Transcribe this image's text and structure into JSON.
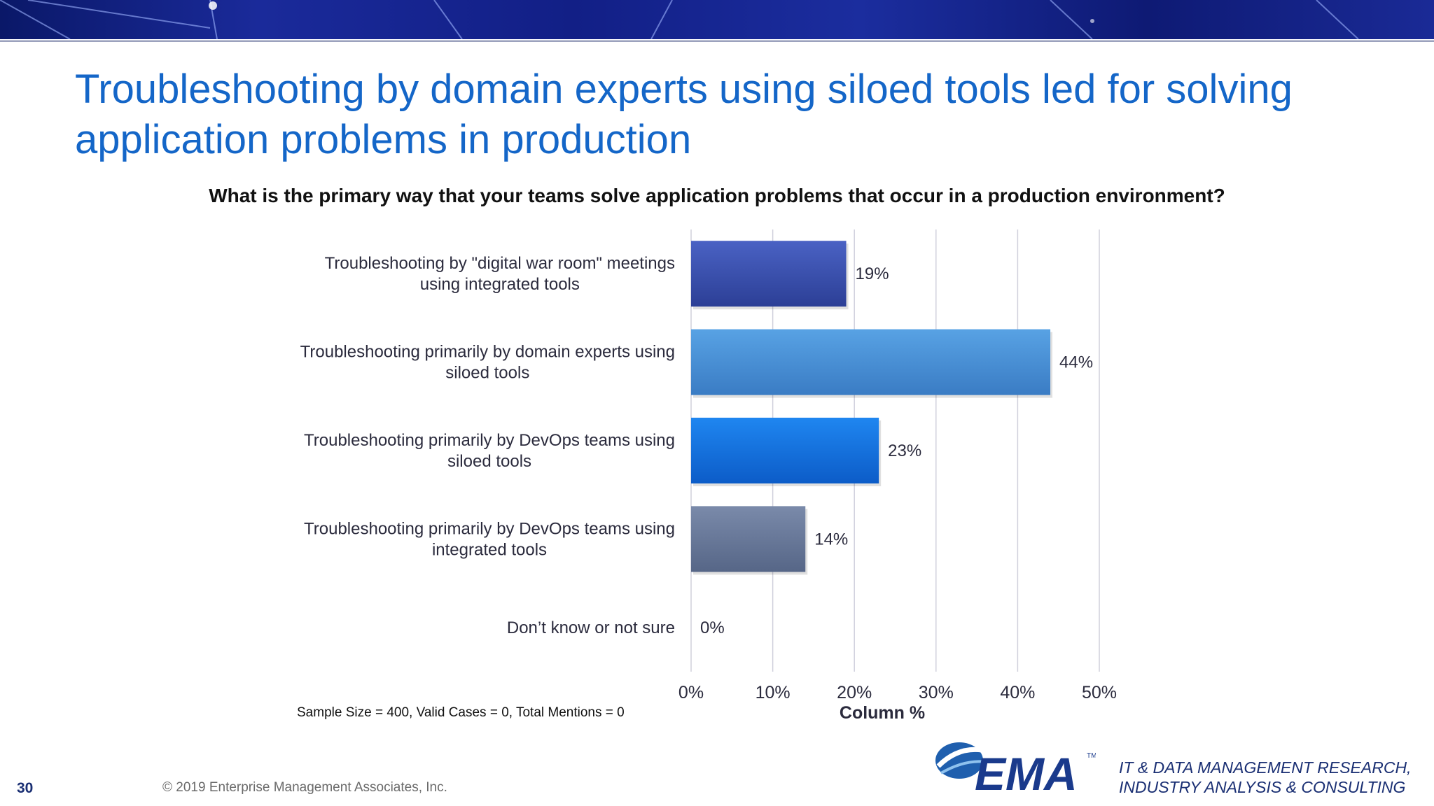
{
  "slide": {
    "title": "Troubleshooting by domain experts using siloed tools led for solving application problems in production",
    "question": "What is the primary way that your teams solve application problems that occur in a production environment?",
    "sample_note": "Sample Size = 400, Valid Cases = 0, Total Mentions = 0",
    "page_number": "30",
    "copyright": "© 2019 Enterprise Management Associates, Inc.",
    "logo_text": "EMA",
    "logo_tm": "TM",
    "tagline_line1": "IT & DATA MANAGEMENT RESEARCH,",
    "tagline_line2": "INDUSTRY ANALYSIS & CONSULTING"
  },
  "colors": {
    "title": "#1466c8",
    "banner": "#141f86",
    "grid": "#d0d0dc",
    "bar_gradients": [
      [
        "#4a62c4",
        "#2c3f96"
      ],
      [
        "#58a2e4",
        "#3a7cc4"
      ],
      [
        "#1f86f0",
        "#0c5cc8"
      ],
      [
        "#7a8aaa",
        "#566687"
      ],
      [
        "#999999",
        "#777777"
      ]
    ]
  },
  "chart_data": {
    "type": "bar",
    "orientation": "horizontal",
    "categories": [
      [
        "Troubleshooting by \"digital war room\" meetings",
        "using integrated tools"
      ],
      [
        "Troubleshooting primarily by domain experts using",
        "siloed tools"
      ],
      [
        "Troubleshooting primarily by DevOps teams using",
        "siloed tools"
      ],
      [
        "Troubleshooting primarily by DevOps teams using",
        "integrated tools"
      ],
      [
        "Don’t know or not sure"
      ]
    ],
    "values": [
      19,
      44,
      23,
      14,
      0
    ],
    "value_labels": [
      "19%",
      "44%",
      "23%",
      "14%",
      "0%"
    ],
    "xticks": [
      0,
      10,
      20,
      30,
      40,
      50
    ],
    "xtick_labels": [
      "0%",
      "10%",
      "20%",
      "30%",
      "40%",
      "50%"
    ],
    "xlim": [
      0,
      50
    ],
    "xlabel": "Column %",
    "ylabel": "",
    "grid": "vertical"
  }
}
